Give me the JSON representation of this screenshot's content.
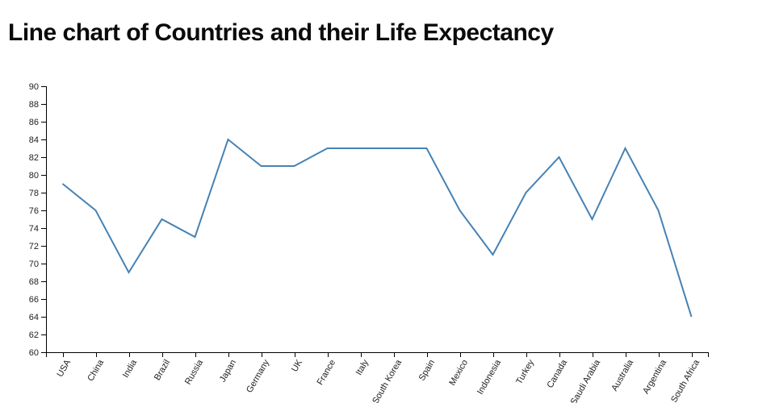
{
  "title": "Line chart of Countries and their Life Expectancy",
  "chart_data": {
    "type": "line",
    "title": "Line chart of Countries and their Life Expectancy",
    "categories": [
      "USA",
      "China",
      "India",
      "Brazil",
      "Russia",
      "Japan",
      "Germany",
      "UK",
      "France",
      "Italy",
      "South Korea",
      "Spain",
      "Mexico",
      "Indonesia",
      "Turkey",
      "Canada",
      "Saudi Arabia",
      "Australia",
      "Argentina",
      "South Africa"
    ],
    "values": [
      79,
      76,
      69,
      75,
      73,
      84,
      81,
      81,
      83,
      83,
      83,
      83,
      76,
      71,
      78,
      82,
      75,
      83,
      76,
      64
    ],
    "xlabel": "",
    "ylabel": "",
    "ylim": [
      60,
      90
    ],
    "ytick_step": 2,
    "grid": false,
    "legend": false,
    "line_color": "#4682b4",
    "axis_color": "#000000",
    "tick_label_color": "#222222",
    "background": "#ffffff"
  }
}
